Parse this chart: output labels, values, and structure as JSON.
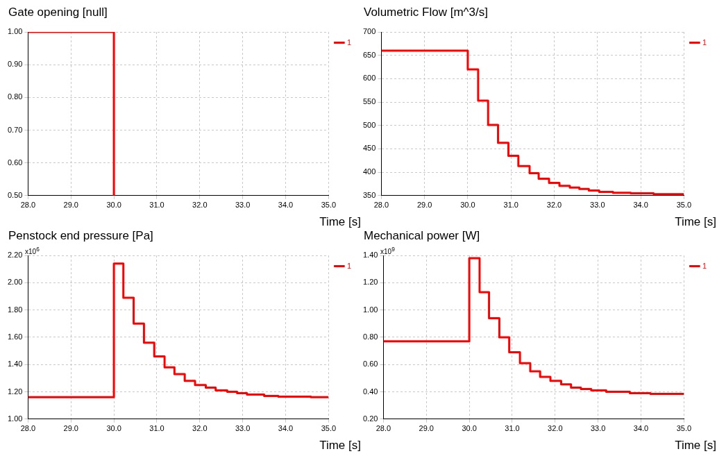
{
  "chart_data": [
    {
      "type": "step",
      "title": "Gate opening [null]",
      "xlabel": "Time [s]",
      "x": [
        28,
        30
      ],
      "series": [
        {
          "name": "1",
          "color": "#ff0000",
          "values": [
            1,
            0.5
          ]
        }
      ],
      "xlim": [
        28,
        35
      ],
      "xticks": [
        {
          "value": 28,
          "label": "28.0"
        },
        {
          "value": 29,
          "label": "29.0"
        },
        {
          "value": 30,
          "label": "30.0"
        },
        {
          "value": 31,
          "label": "31.0"
        },
        {
          "value": 32,
          "label": "32.0"
        },
        {
          "value": 33,
          "label": "33.0"
        },
        {
          "value": 34,
          "label": "34.0"
        },
        {
          "value": 35,
          "label": "35.0"
        }
      ],
      "ylim": [
        0.5,
        1
      ],
      "yticks": [
        {
          "value": 0.5,
          "label": "0.50"
        },
        {
          "value": 0.6,
          "label": "0.60"
        },
        {
          "value": 0.7,
          "label": "0.70"
        },
        {
          "value": 0.8,
          "label": "0.80"
        },
        {
          "value": 0.9,
          "label": "0.90"
        },
        {
          "value": 1,
          "label": "1.00"
        }
      ],
      "grid": true,
      "legend": "top right",
      "marker": "none"
    },
    {
      "type": "step",
      "title": "Volumetric Flow [m^3/s]",
      "xlabel": "Time [s]",
      "x": [
        28,
        30,
        30.24,
        30.47,
        30.7,
        30.94,
        31.17,
        31.43,
        31.64,
        31.88,
        32.12,
        32.36,
        32.58,
        32.8,
        33.04,
        33.36,
        33.77,
        34.3,
        35
      ],
      "series": [
        {
          "name": "1",
          "color": "#ff0000",
          "values": [
            660,
            620,
            553,
            501,
            463,
            435,
            413,
            398,
            386,
            377,
            371,
            367,
            364,
            361,
            358,
            356,
            355,
            353,
            353
          ]
        }
      ],
      "xlim": [
        28,
        35
      ],
      "xticks": [
        {
          "value": 28,
          "label": "28.0"
        },
        {
          "value": 29,
          "label": "29.0"
        },
        {
          "value": 30,
          "label": "30.0"
        },
        {
          "value": 31,
          "label": "31.0"
        },
        {
          "value": 32,
          "label": "32.0"
        },
        {
          "value": 33,
          "label": "33.0"
        },
        {
          "value": 34,
          "label": "34.0"
        },
        {
          "value": 35,
          "label": "35.0"
        }
      ],
      "ylim": [
        350,
        700
      ],
      "yticks": [
        350,
        400,
        450,
        500,
        550,
        600,
        650,
        700
      ],
      "grid": true,
      "legend": "top right",
      "marker": "none"
    },
    {
      "type": "step",
      "title": "Penstock end pressure [Pa]",
      "xlabel": "Time [s]",
      "annotations": [
        "x10$^{6}$"
      ],
      "x": [
        28,
        30,
        30.22,
        30.46,
        30.7,
        30.94,
        31.18,
        31.41,
        31.65,
        31.89,
        32.14,
        32.37,
        32.64,
        32.87,
        33.1,
        33.5,
        33.83,
        34.59,
        35
      ],
      "series": [
        {
          "name": "1",
          "color": "#ff0000",
          "values": [
            1.16,
            2.14,
            1.89,
            1.7,
            1.56,
            1.46,
            1.38,
            1.33,
            1.28,
            1.25,
            1.23,
            1.21,
            1.2,
            1.19,
            1.18,
            1.17,
            1.165,
            1.16,
            1.16
          ]
        }
      ],
      "xlim": [
        28,
        35
      ],
      "xticks": [
        {
          "value": 28,
          "label": "28.0"
        },
        {
          "value": 29,
          "label": "29.0"
        },
        {
          "value": 30,
          "label": "30.0"
        },
        {
          "value": 31,
          "label": "31.0"
        },
        {
          "value": 32,
          "label": "32.0"
        },
        {
          "value": 33,
          "label": "33.0"
        },
        {
          "value": 34,
          "label": "34.0"
        },
        {
          "value": 35,
          "label": "35.0"
        }
      ],
      "ylim": [
        1,
        2.2
      ],
      "yticks": [
        {
          "value": 1,
          "label": "1.00"
        },
        {
          "value": 1.2,
          "label": "1.20"
        },
        {
          "value": 1.4,
          "label": "1.40"
        },
        {
          "value": 1.6,
          "label": "1.60"
        },
        {
          "value": 1.8,
          "label": "1.80"
        },
        {
          "value": 2,
          "label": "2.00"
        },
        {
          "value": 2.2,
          "label": "2.20"
        }
      ],
      "grid": true,
      "legend": "top right",
      "marker": "none"
    },
    {
      "type": "step",
      "title": "Mechanical power [W]",
      "xlabel": "Time [s]",
      "annotations": [
        "x10$^{9}$"
      ],
      "x": [
        28,
        30,
        30.24,
        30.46,
        30.7,
        30.93,
        31.18,
        31.42,
        31.65,
        31.89,
        32.14,
        32.37,
        32.6,
        32.84,
        33.19,
        33.74,
        34.22,
        35
      ],
      "series": [
        {
          "name": "1",
          "color": "#ff0000",
          "values": [
            0.77,
            1.38,
            1.13,
            0.94,
            0.8,
            0.69,
            0.61,
            0.55,
            0.51,
            0.48,
            0.455,
            0.43,
            0.42,
            0.41,
            0.4,
            0.39,
            0.385,
            0.385
          ]
        }
      ],
      "xlim": [
        28,
        35
      ],
      "xticks": [
        {
          "value": 28,
          "label": "28.0"
        },
        {
          "value": 29,
          "label": "29.0"
        },
        {
          "value": 30,
          "label": "30.0"
        },
        {
          "value": 31,
          "label": "31.0"
        },
        {
          "value": 32,
          "label": "32.0"
        },
        {
          "value": 33,
          "label": "33.0"
        },
        {
          "value": 34,
          "label": "34.0"
        },
        {
          "value": 35,
          "label": "35.0"
        }
      ],
      "ylim": [
        0.2,
        1.4
      ],
      "yticks": [
        {
          "value": 0.2,
          "label": "0.20"
        },
        {
          "value": 0.4,
          "label": "0.40"
        },
        {
          "value": 0.6,
          "label": "0.60"
        },
        {
          "value": 0.8,
          "label": "0.80"
        },
        {
          "value": 1,
          "label": "1.00"
        },
        {
          "value": 1.2,
          "label": "1.20"
        },
        {
          "value": 1.4,
          "label": "1.40"
        }
      ],
      "grid": true,
      "legend": "top right",
      "marker": "none"
    }
  ]
}
